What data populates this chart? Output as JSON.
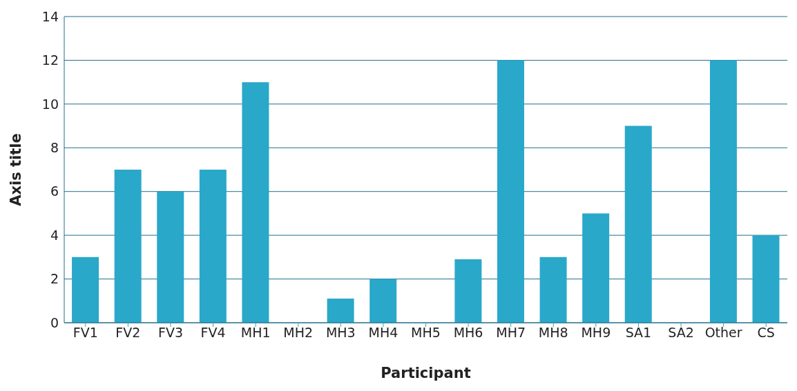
{
  "chart_data": {
    "type": "bar",
    "xlabel": "Participant",
    "ylabel": "Axis title",
    "categories": [
      "FV1",
      "FV2",
      "FV3",
      "FV4",
      "MH1",
      "MH2",
      "MH3",
      "MH4",
      "MH5",
      "MH6",
      "MH7",
      "MH8",
      "MH9",
      "SA1",
      "SA2",
      "Other",
      "CS"
    ],
    "values": [
      3,
      7,
      6,
      7,
      11,
      0,
      1.1,
      2,
      0,
      2.9,
      12,
      3,
      5,
      9,
      0,
      12,
      4
    ],
    "color": "#29a8c9",
    "ylim": [
      0,
      14
    ],
    "yticks": [
      0,
      2,
      4,
      6,
      8,
      10,
      12,
      14
    ],
    "grid": "y",
    "legend": false
  }
}
